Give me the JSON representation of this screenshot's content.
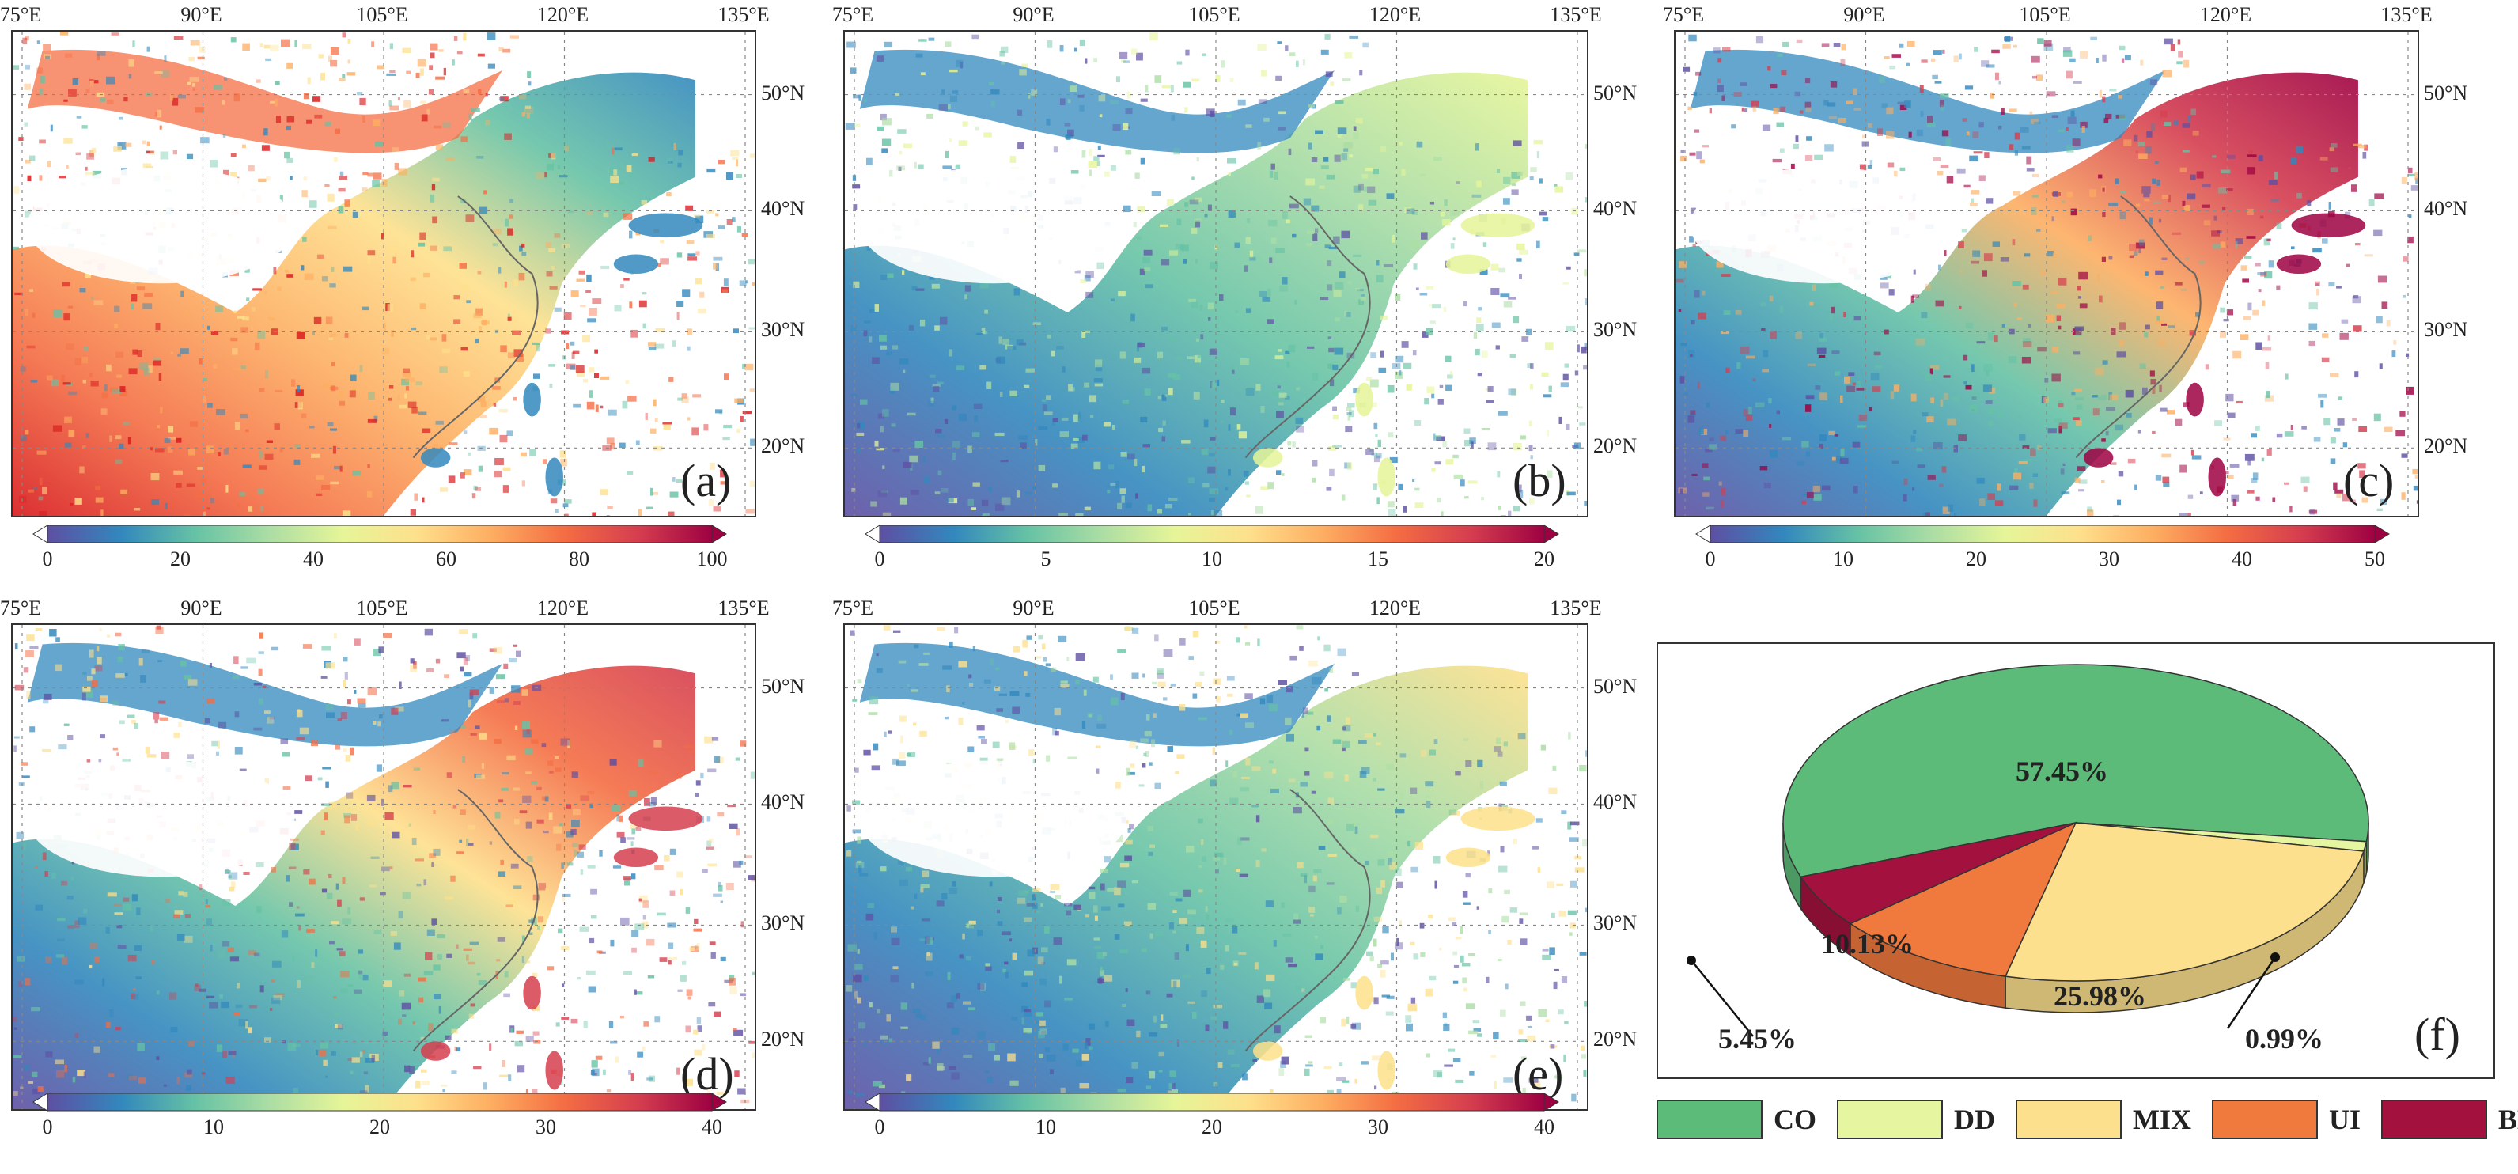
{
  "figure": {
    "lon_ticks": [
      "75°E",
      "90°E",
      "105°E",
      "120°E",
      "135°E"
    ],
    "lat_ticks": [
      "50°N",
      "40°N",
      "30°N",
      "20°N"
    ]
  },
  "panels": [
    {
      "letter": "(a)",
      "colorbar": {
        "ticks": [
          "0",
          "20",
          "40",
          "60",
          "80",
          "100"
        ],
        "min": 0,
        "max": 100
      },
      "theme": "hot",
      "colors": [
        "#d7191c",
        "#f46d43",
        "#fdae61",
        "#fee08b",
        "#66c2a5",
        "#3288bd"
      ]
    },
    {
      "letter": "(b)",
      "colorbar": {
        "ticks": [
          "0",
          "5",
          "10",
          "15",
          "20"
        ],
        "min": 0,
        "max": 20
      },
      "theme": "sparse",
      "colors": [
        "#5e4fa2",
        "#3288bd",
        "#66c2a5",
        "#abdda4",
        "#e6f598"
      ]
    },
    {
      "letter": "(c)",
      "colorbar": {
        "ticks": [
          "0",
          "10",
          "20",
          "30",
          "40",
          "50"
        ],
        "min": 0,
        "max": 50
      },
      "theme": "mixed",
      "colors": [
        "#5e4fa2",
        "#3288bd",
        "#66c2a5",
        "#fdae61",
        "#d53e4f",
        "#9e0142"
      ]
    },
    {
      "letter": "(d)",
      "colorbar": {
        "ticks": [
          "0",
          "10",
          "20",
          "30",
          "40"
        ],
        "min": 0,
        "max": 40
      },
      "theme": "mid",
      "colors": [
        "#5e4fa2",
        "#3288bd",
        "#66c2a5",
        "#fee08b",
        "#f46d43",
        "#d53e4f"
      ]
    },
    {
      "letter": "(e)",
      "colorbar": {
        "ticks": [
          "0",
          "10",
          "20",
          "30",
          "40"
        ],
        "min": 0,
        "max": 40
      },
      "theme": "cool",
      "colors": [
        "#5e4fa2",
        "#3288bd",
        "#66c2a5",
        "#abdda4",
        "#fee08b"
      ]
    }
  ],
  "colormap": [
    "#5e4fa2",
    "#3288bd",
    "#66c2a5",
    "#abdda4",
    "#e6f598",
    "#fee08b",
    "#fdae61",
    "#f46d43",
    "#d53e4f",
    "#9e0142"
  ],
  "chart_data": {
    "type": "pie",
    "title": "",
    "panel_letter": "(f)",
    "slices": [
      {
        "name": "CO",
        "value": 57.45,
        "label": "57.45%",
        "color": "#5dbb7a"
      },
      {
        "name": "DD",
        "value": 0.99,
        "label": "0.99%",
        "color": "#e6f5a0"
      },
      {
        "name": "MIX",
        "value": 25.98,
        "label": "25.98%",
        "color": "#fce08e"
      },
      {
        "name": "UI",
        "value": 10.13,
        "label": "10.13%",
        "color": "#f07a3d"
      },
      {
        "name": "BB",
        "value": 5.45,
        "label": "5.45%",
        "color": "#a3123e"
      }
    ],
    "legend": [
      "CO",
      "DD",
      "MIX",
      "UI",
      "BB"
    ]
  }
}
